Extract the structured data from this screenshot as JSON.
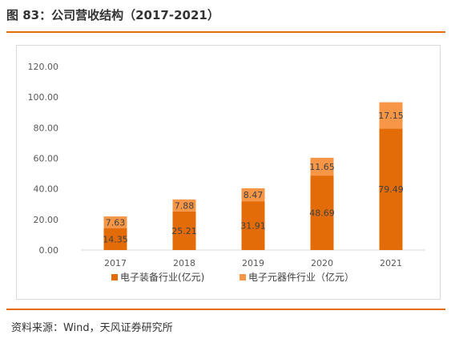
{
  "figure": {
    "title": "图 83：公司营收结构（2017-2021）",
    "source": "资料来源：Wind，天风证券研究所",
    "rule_color": "#e36c09"
  },
  "chart_data": {
    "type": "bar",
    "stacked": true,
    "categories": [
      "2017",
      "2018",
      "2019",
      "2020",
      "2021"
    ],
    "series": [
      {
        "name": "电子装备行业(亿元)",
        "values": [
          14.35,
          25.21,
          31.91,
          48.69,
          79.49
        ],
        "color": "#e36c09"
      },
      {
        "name": "电子元器件行业（亿元）",
        "values": [
          7.63,
          7.88,
          8.47,
          11.65,
          17.15
        ],
        "color": "#f79646"
      }
    ],
    "yticks": [
      "0.00",
      "20.00",
      "40.00",
      "60.00",
      "80.00",
      "100.00",
      "120.00"
    ],
    "ylim": [
      0,
      120
    ],
    "grid": false,
    "legend_position": "bottom"
  }
}
